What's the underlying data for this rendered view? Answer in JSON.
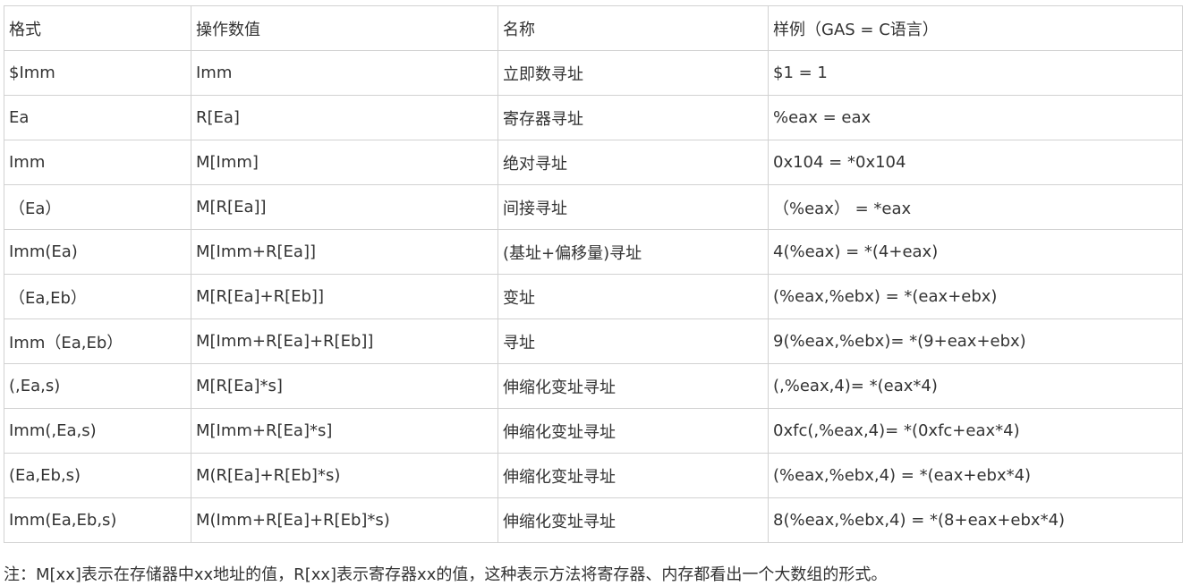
{
  "table": {
    "headers": [
      "格式",
      "操作数值",
      "名称",
      "样例（GAS = C语言）"
    ],
    "rows": [
      [
        "$Imm",
        "Imm",
        "立即数寻址",
        "$1 = 1"
      ],
      [
        "Ea",
        "R[Ea]",
        "寄存器寻址",
        "%eax = eax"
      ],
      [
        "Imm",
        "M[Imm]",
        "绝对寻址",
        "0x104 = *0x104"
      ],
      [
        "（Ea）",
        "M[R[Ea]]",
        "间接寻址",
        "（%eax） = *eax"
      ],
      [
        "Imm(Ea)",
        "M[Imm+R[Ea]]",
        "(基址+偏移量)寻址",
        "4(%eax) = *(4+eax)"
      ],
      [
        "（Ea,Eb）",
        "M[R[Ea]+R[Eb]]",
        "变址",
        "(%eax,%ebx) = *(eax+ebx)"
      ],
      [
        "Imm（Ea,Eb）",
        "M[Imm+R[Ea]+R[Eb]]",
        "寻址",
        "9(%eax,%ebx)= *(9+eax+ebx)"
      ],
      [
        "(,Ea,s)",
        "M[R[Ea]*s]",
        "伸缩化变址寻址",
        "(,%eax,4)= *(eax*4)"
      ],
      [
        "Imm(,Ea,s)",
        "M[Imm+R[Ea]*s]",
        "伸缩化变址寻址",
        "0xfc(,%eax,4)= *(0xfc+eax*4)"
      ],
      [
        "(Ea,Eb,s)",
        "M(R[Ea]+R[Eb]*s)",
        "伸缩化变址寻址",
        "(%eax,%ebx,4) = *(eax+ebx*4)"
      ],
      [
        "Imm(Ea,Eb,s)",
        "M(Imm+R[Ea]+R[Eb]*s)",
        "伸缩化变址寻址",
        "8(%eax,%ebx,4) = *(8+eax+ebx*4)"
      ]
    ]
  },
  "note": "注：M[xx]表示在存储器中xx地址的值，R[xx]表示寄存器xx的值，这种表示方法将寄存器、内存都看出一个大数组的形式。"
}
